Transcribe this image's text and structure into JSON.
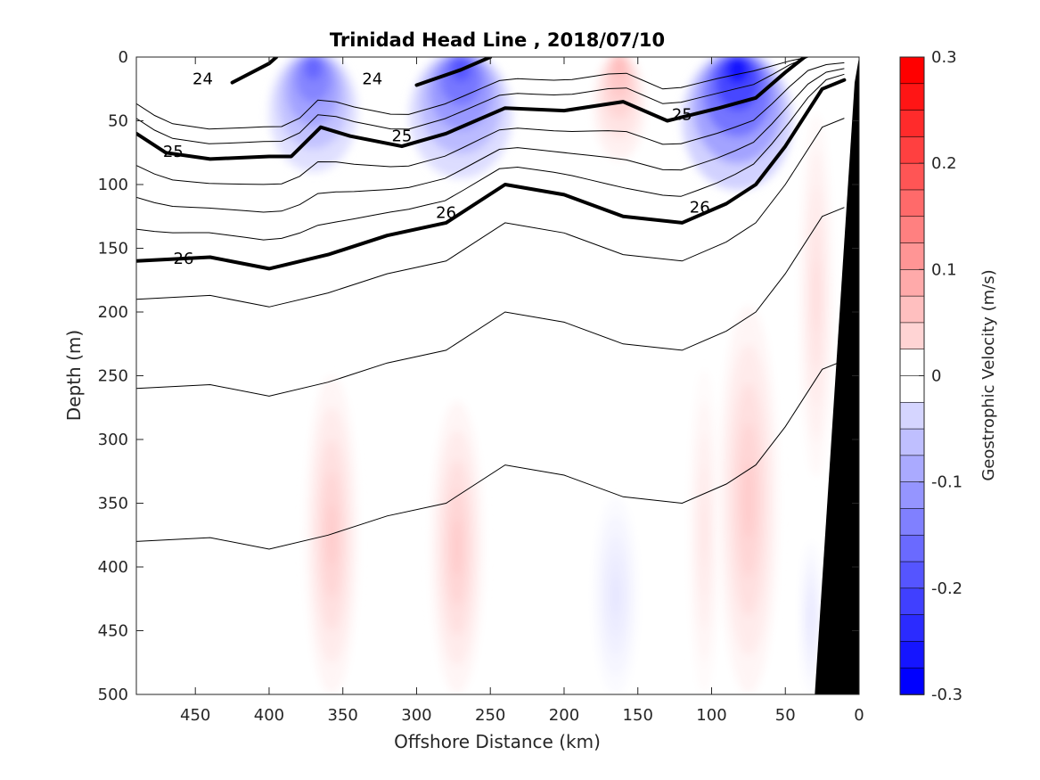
{
  "chart_data": {
    "type": "heatmap",
    "title": "Trinidad Head Line , 2018/07/10",
    "xlabel": "Offshore Distance (km)",
    "ylabel": "Depth (m)",
    "xlim": [
      490,
      0
    ],
    "ylim": [
      0,
      500
    ],
    "x_reversed": true,
    "y_reversed": true,
    "xticks": [
      450,
      400,
      350,
      300,
      250,
      200,
      150,
      100,
      50,
      0
    ],
    "yticks": [
      0,
      50,
      100,
      150,
      200,
      250,
      300,
      350,
      400,
      450,
      500
    ],
    "colorbar": {
      "label": "Geostrophic Velocity (m/s)",
      "range": [
        -0.3,
        0.3
      ],
      "ticks": [
        -0.3,
        -0.2,
        -0.1,
        0,
        0.1,
        0.2,
        0.3
      ],
      "levels": 24,
      "negative_color": "#0000ff",
      "positive_color": "#ff0000"
    },
    "velocity_features": [
      {
        "x_range": [
          400,
          340
        ],
        "depth_range": [
          0,
          95
        ],
        "min_velocity": -0.18
      },
      {
        "x_range": [
          305,
          235
        ],
        "depth_range": [
          0,
          100
        ],
        "min_velocity": -0.2
      },
      {
        "x_range": [
          120,
          45
        ],
        "depth_range": [
          0,
          110
        ],
        "min_velocity": -0.27
      },
      {
        "x_range": [
          180,
          145
        ],
        "depth_range": [
          0,
          85
        ],
        "max_velocity": 0.08
      },
      {
        "x_range": [
          375,
          340
        ],
        "depth_range": [
          250,
          500
        ],
        "max_velocity": 0.06
      },
      {
        "x_range": [
          290,
          255
        ],
        "depth_range": [
          270,
          500
        ],
        "max_velocity": 0.06
      },
      {
        "x_range": [
          115,
          95
        ],
        "depth_range": [
          245,
          500
        ],
        "max_velocity": 0.03
      },
      {
        "x_range": [
          95,
          55
        ],
        "depth_range": [
          195,
          500
        ],
        "max_velocity": 0.06
      },
      {
        "x_range": [
          40,
          18
        ],
        "depth_range": [
          45,
          330
        ],
        "max_velocity": 0.04
      },
      {
        "x_range": [
          180,
          150
        ],
        "depth_range": [
          345,
          500
        ],
        "min_velocity": -0.03
      },
      {
        "x_range": [
          40,
          25
        ],
        "depth_range": [
          380,
          500
        ],
        "min_velocity": -0.03
      }
    ],
    "density_contours": [
      {
        "level": 24,
        "bold": true,
        "points": [
          [
            425,
            20
          ],
          [
            400,
            5
          ],
          [
            395,
            0
          ]
        ]
      },
      {
        "level": 24,
        "bold": true,
        "points": [
          [
            300,
            22
          ],
          [
            270,
            10
          ],
          [
            250,
            0
          ]
        ]
      },
      {
        "level": 25,
        "bold": true,
        "points": [
          [
            490,
            60
          ],
          [
            470,
            75
          ],
          [
            440,
            80
          ],
          [
            400,
            78
          ],
          [
            385,
            78
          ],
          [
            365,
            55
          ],
          [
            345,
            62
          ],
          [
            310,
            70
          ],
          [
            280,
            60
          ],
          [
            240,
            40
          ],
          [
            200,
            42
          ],
          [
            160,
            35
          ],
          [
            130,
            50
          ],
          [
            95,
            40
          ],
          [
            70,
            32
          ],
          [
            50,
            12
          ],
          [
            37,
            0
          ]
        ]
      },
      {
        "level": 26,
        "bold": true,
        "points": [
          [
            490,
            160
          ],
          [
            440,
            157
          ],
          [
            400,
            166
          ],
          [
            360,
            155
          ],
          [
            320,
            140
          ],
          [
            280,
            130
          ],
          [
            240,
            100
          ],
          [
            200,
            108
          ],
          [
            160,
            125
          ],
          [
            120,
            130
          ],
          [
            90,
            115
          ],
          [
            70,
            100
          ],
          [
            50,
            70
          ],
          [
            25,
            25
          ],
          [
            10,
            18
          ]
        ]
      }
    ],
    "contour_labels": [
      {
        "text": "24",
        "x": 445,
        "y": 17
      },
      {
        "text": "24",
        "x": 330,
        "y": 17
      },
      {
        "text": "25",
        "x": 465,
        "y": 74
      },
      {
        "text": "25",
        "x": 310,
        "y": 62
      },
      {
        "text": "25",
        "x": 120,
        "y": 45
      },
      {
        "text": "26",
        "x": 458,
        "y": 158
      },
      {
        "text": "26",
        "x": 280,
        "y": 122
      },
      {
        "text": "26",
        "x": 108,
        "y": 118
      }
    ],
    "bathymetry_color": "#000000"
  }
}
